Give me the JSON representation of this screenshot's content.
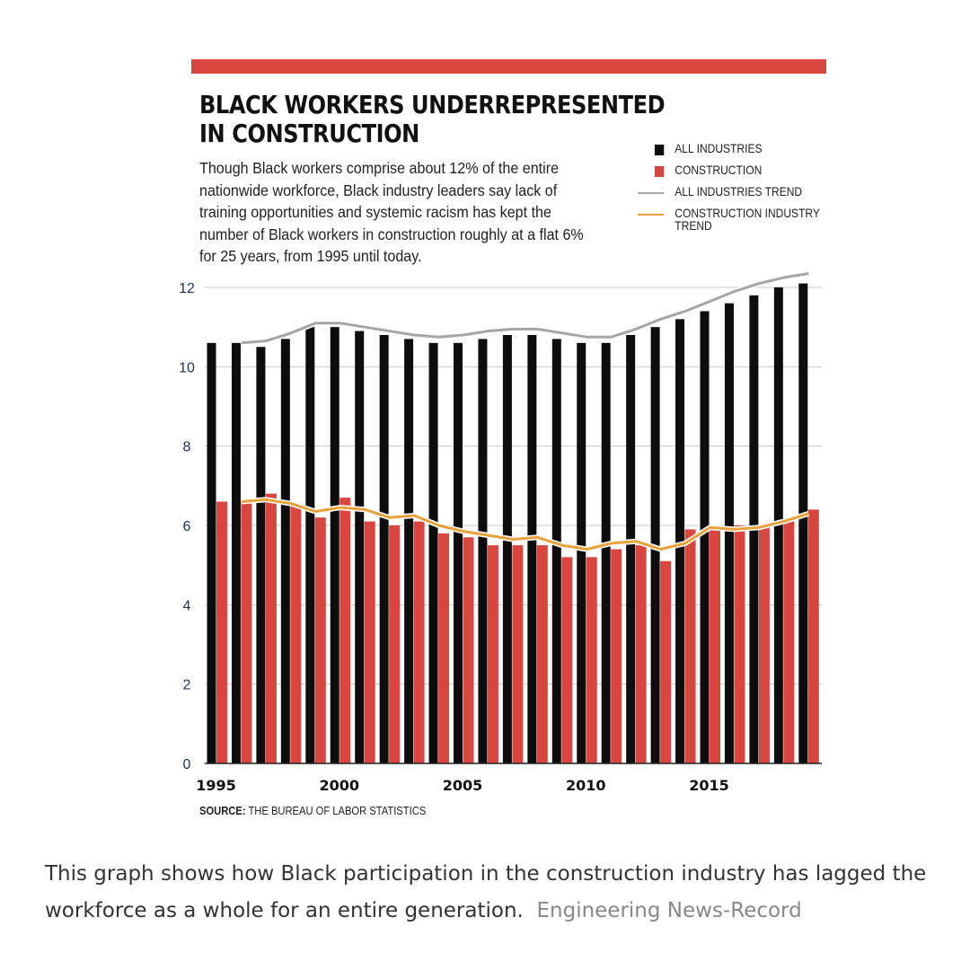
{
  "title_line1": "BLACK WORKERS UNDERREPRESENTED",
  "title_line2": "IN CONSTRUCTION",
  "description": "Though Black workers comprise about 12% of the entire nationwide workforce, Black industry leaders say lack of training opportunities and systemic racism has kept the number of Black workers in construction roughly at a flat 6% for 25 years, from 1995 until today.",
  "legend": {
    "all_industries": "ALL INDUSTRIES",
    "construction": "CONSTRUCTION",
    "all_trend": "ALL INDUSTRIES TREND",
    "construction_trend": "CONSTRUCTION INDUSTRY TREND"
  },
  "source_label": "SOURCE:",
  "source_text": "THE BUREAU OF LABOR STATISTICS",
  "caption": "This graph shows how Black participation in the construction industry has lagged the workforce as a whole for an entire generation.",
  "caption_credit": "Engineering News-Record",
  "colors": {
    "accent_red": "#d94640",
    "bar_black": "#0d0d0d",
    "all_trend": "#a6a6a6",
    "construction_trend": "#e9a23b",
    "grid": "#c8c8c8"
  },
  "chart_data": {
    "type": "bar",
    "title": "BLACK WORKERS UNDERREPRESENTED IN CONSTRUCTION",
    "xlabel": "",
    "ylabel": "",
    "ylim": [
      0,
      12
    ],
    "yticks": [
      0,
      2,
      4,
      6,
      8,
      10,
      12
    ],
    "xticks": [
      1995,
      2000,
      2005,
      2010,
      2015
    ],
    "grid": true,
    "legend_position": "top-right",
    "categories": [
      1995,
      1996,
      1997,
      1998,
      1999,
      2000,
      2001,
      2002,
      2003,
      2004,
      2005,
      2006,
      2007,
      2008,
      2009,
      2010,
      2011,
      2012,
      2013,
      2014,
      2015,
      2016,
      2017,
      2018,
      2019
    ],
    "series": [
      {
        "name": "ALL INDUSTRIES",
        "kind": "bar",
        "values": [
          10.6,
          10.6,
          10.5,
          10.7,
          11.0,
          11.0,
          10.9,
          10.8,
          10.7,
          10.6,
          10.6,
          10.7,
          10.8,
          10.8,
          10.7,
          10.6,
          10.6,
          10.8,
          11.0,
          11.2,
          11.4,
          11.6,
          11.8,
          12.0,
          12.1
        ]
      },
      {
        "name": "CONSTRUCTION",
        "kind": "bar",
        "values": [
          6.6,
          6.6,
          6.8,
          6.5,
          6.2,
          6.7,
          6.1,
          6.0,
          6.1,
          5.8,
          5.7,
          5.5,
          5.5,
          5.5,
          5.2,
          5.2,
          5.4,
          5.5,
          5.1,
          5.9,
          6.0,
          6.0,
          6.0,
          6.1,
          6.4
        ]
      },
      {
        "name": "ALL INDUSTRIES TREND",
        "kind": "line",
        "values": [
          null,
          10.6,
          10.65,
          10.85,
          11.1,
          11.1,
          11.0,
          10.9,
          10.8,
          10.75,
          10.8,
          10.9,
          10.95,
          10.95,
          10.85,
          10.75,
          10.75,
          10.95,
          11.2,
          11.4,
          11.65,
          11.9,
          12.1,
          12.25,
          12.35
        ]
      },
      {
        "name": "CONSTRUCTION INDUSTRY TREND",
        "kind": "line",
        "values": [
          null,
          6.6,
          6.65,
          6.55,
          6.35,
          6.45,
          6.4,
          6.2,
          6.25,
          6.0,
          5.85,
          5.75,
          5.65,
          5.7,
          5.5,
          5.4,
          5.55,
          5.6,
          5.4,
          5.55,
          5.95,
          5.9,
          5.95,
          6.1,
          6.3
        ]
      }
    ]
  }
}
